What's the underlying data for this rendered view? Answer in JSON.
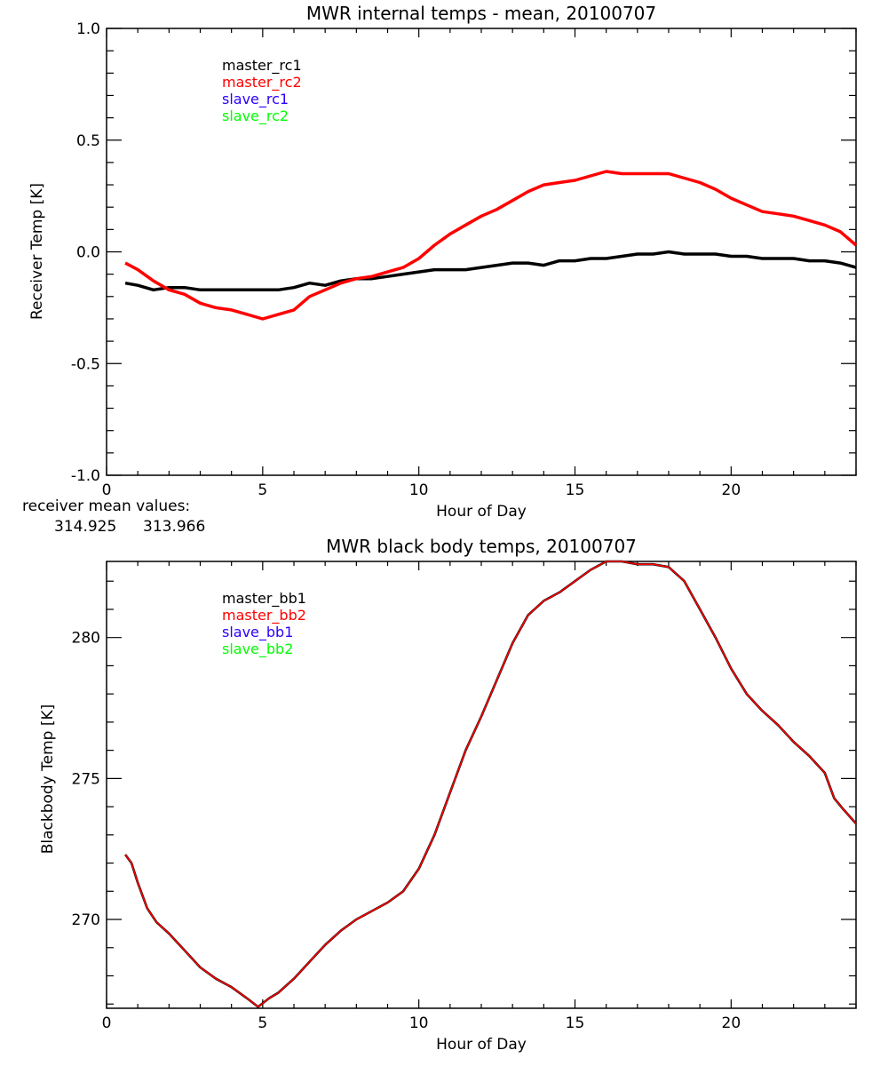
{
  "chart_data": [
    {
      "type": "line",
      "title": "MWR internal temps - mean, 20100707",
      "xlabel": "Hour of Day",
      "ylabel": "Receiver Temp [K]",
      "xlim": [
        0,
        24
      ],
      "ylim": [
        -1.0,
        1.0
      ],
      "xticks": [
        0,
        5,
        10,
        15,
        20
      ],
      "xtick_labels": [
        "0",
        "5",
        "10",
        "15",
        "20"
      ],
      "x_minor_step": 1,
      "yticks": [
        -1.0,
        -0.5,
        0.0,
        0.5,
        1.0
      ],
      "ytick_labels": [
        "-1.0",
        "-0.5",
        "0.0",
        "0.5",
        "1.0"
      ],
      "y_minor_step": 0.1,
      "grid": false,
      "legend": {
        "position": "top-left",
        "entries": [
          {
            "label": "master_rc1",
            "color": "#000000"
          },
          {
            "label": "master_rc2",
            "color": "#ff0000"
          },
          {
            "label": "slave_rc1",
            "color": "#2b00ff"
          },
          {
            "label": "slave_rc2",
            "color": "#00ff00"
          }
        ]
      },
      "series": [
        {
          "name": "master_rc1",
          "color": "#000000",
          "x": [
            0.6,
            1.0,
            1.5,
            2.0,
            2.5,
            3.0,
            3.5,
            4.0,
            4.5,
            5.0,
            5.5,
            6.0,
            6.5,
            7.0,
            7.5,
            8.0,
            8.5,
            9.0,
            9.5,
            10.0,
            10.5,
            11.0,
            11.5,
            12.0,
            12.5,
            13.0,
            13.5,
            14.0,
            14.5,
            15.0,
            15.5,
            16.0,
            16.5,
            17.0,
            17.5,
            18.0,
            18.5,
            19.0,
            19.5,
            20.0,
            20.5,
            21.0,
            21.5,
            22.0,
            22.5,
            23.0,
            23.5,
            24.0
          ],
          "y": [
            -0.14,
            -0.15,
            -0.17,
            -0.16,
            -0.16,
            -0.17,
            -0.17,
            -0.17,
            -0.17,
            -0.17,
            -0.17,
            -0.16,
            -0.14,
            -0.15,
            -0.13,
            -0.12,
            -0.12,
            -0.11,
            -0.1,
            -0.09,
            -0.08,
            -0.08,
            -0.08,
            -0.07,
            -0.06,
            -0.05,
            -0.05,
            -0.06,
            -0.04,
            -0.04,
            -0.03,
            -0.03,
            -0.02,
            -0.01,
            -0.01,
            0.0,
            -0.01,
            -0.01,
            -0.01,
            -0.02,
            -0.02,
            -0.03,
            -0.03,
            -0.03,
            -0.04,
            -0.04,
            -0.05,
            -0.07
          ]
        },
        {
          "name": "master_rc2",
          "color": "#ff0000",
          "x": [
            0.6,
            1.0,
            1.5,
            2.0,
            2.5,
            3.0,
            3.5,
            4.0,
            4.5,
            5.0,
            5.5,
            6.0,
            6.5,
            7.0,
            7.5,
            8.0,
            8.5,
            9.0,
            9.5,
            10.0,
            10.5,
            11.0,
            11.5,
            12.0,
            12.5,
            13.0,
            13.5,
            14.0,
            14.5,
            15.0,
            15.5,
            16.0,
            16.5,
            17.0,
            17.5,
            18.0,
            18.5,
            19.0,
            19.5,
            20.0,
            20.5,
            21.0,
            21.5,
            22.0,
            22.5,
            23.0,
            23.5,
            24.0
          ],
          "y": [
            -0.05,
            -0.08,
            -0.13,
            -0.17,
            -0.19,
            -0.23,
            -0.25,
            -0.26,
            -0.28,
            -0.3,
            -0.28,
            -0.26,
            -0.2,
            -0.17,
            -0.14,
            -0.12,
            -0.11,
            -0.09,
            -0.07,
            -0.03,
            0.03,
            0.08,
            0.12,
            0.16,
            0.19,
            0.23,
            0.27,
            0.3,
            0.31,
            0.32,
            0.34,
            0.36,
            0.35,
            0.35,
            0.35,
            0.35,
            0.33,
            0.31,
            0.28,
            0.24,
            0.21,
            0.18,
            0.17,
            0.16,
            0.14,
            0.12,
            0.09,
            0.03
          ]
        }
      ],
      "annotation": {
        "label": "receiver mean values:",
        "values": [
          {
            "text": "314.925",
            "color": "#000000"
          },
          {
            "text": "313.966",
            "color": "#ff0000"
          }
        ]
      }
    },
    {
      "type": "line",
      "title": "MWR black body temps, 20100707",
      "xlabel": "Hour of Day",
      "ylabel": "Blackbody Temp [K]",
      "xlim": [
        0,
        24
      ],
      "ylim": [
        266.85,
        282.7
      ],
      "xticks": [
        0,
        5,
        10,
        15,
        20
      ],
      "xtick_labels": [
        "0",
        "5",
        "10",
        "15",
        "20"
      ],
      "x_minor_step": 1,
      "yticks": [
        270,
        275,
        280
      ],
      "ytick_labels": [
        "270",
        "275",
        "280"
      ],
      "y_minor_step": 1,
      "grid": false,
      "legend": {
        "position": "top-left",
        "entries": [
          {
            "label": "master_bb1",
            "color": "#000000"
          },
          {
            "label": "master_bb2",
            "color": "#ff0000"
          },
          {
            "label": "slave_bb1",
            "color": "#2b00ff"
          },
          {
            "label": "slave_bb2",
            "color": "#00ff00"
          }
        ]
      },
      "series": [
        {
          "name": "master_bb1",
          "color": "#000000",
          "x": [
            0.6,
            0.8,
            1.0,
            1.3,
            1.6,
            2.0,
            2.5,
            3.0,
            3.5,
            4.0,
            4.5,
            4.85,
            5.2,
            5.5,
            6.0,
            6.5,
            7.0,
            7.5,
            8.0,
            8.5,
            9.0,
            9.5,
            10.0,
            10.5,
            11.0,
            11.5,
            12.0,
            12.5,
            13.0,
            13.5,
            14.0,
            14.5,
            15.0,
            15.5,
            16.0,
            16.5,
            17.0,
            17.5,
            18.0,
            18.5,
            19.0,
            19.5,
            20.0,
            20.5,
            21.0,
            21.5,
            22.0,
            22.5,
            23.0,
            23.3,
            23.6,
            24.0
          ],
          "y": [
            272.3,
            272.0,
            271.3,
            270.4,
            269.9,
            269.5,
            268.9,
            268.3,
            267.9,
            267.6,
            267.2,
            266.9,
            267.2,
            267.4,
            267.9,
            268.5,
            269.1,
            269.6,
            270.0,
            270.3,
            270.6,
            271.0,
            271.8,
            273.0,
            274.5,
            276.0,
            277.2,
            278.5,
            279.8,
            280.8,
            281.3,
            281.6,
            282.0,
            282.4,
            282.7,
            282.7,
            282.6,
            282.6,
            282.5,
            282.0,
            281.0,
            280.0,
            278.9,
            278.0,
            277.4,
            276.9,
            276.3,
            275.8,
            275.2,
            274.3,
            273.9,
            273.4
          ]
        },
        {
          "name": "master_bb2",
          "color": "#ff0000",
          "x": [
            0.6,
            0.8,
            1.0,
            1.3,
            1.6,
            2.0,
            2.5,
            3.0,
            3.5,
            4.0,
            4.5,
            4.85,
            5.2,
            5.5,
            6.0,
            6.5,
            7.0,
            7.5,
            8.0,
            8.5,
            9.0,
            9.5,
            10.0,
            10.5,
            11.0,
            11.5,
            12.0,
            12.5,
            13.0,
            13.5,
            14.0,
            14.5,
            15.0,
            15.5,
            16.0,
            16.5,
            17.0,
            17.5,
            18.0,
            18.5,
            19.0,
            19.5,
            20.0,
            20.5,
            21.0,
            21.5,
            22.0,
            22.5,
            23.0,
            23.3,
            23.6,
            24.0
          ],
          "y": [
            272.3,
            272.0,
            271.3,
            270.4,
            269.9,
            269.5,
            268.9,
            268.3,
            267.9,
            267.6,
            267.2,
            266.9,
            267.2,
            267.4,
            267.9,
            268.5,
            269.1,
            269.6,
            270.0,
            270.3,
            270.6,
            271.0,
            271.8,
            273.0,
            274.5,
            276.0,
            277.2,
            278.5,
            279.8,
            280.8,
            281.3,
            281.6,
            282.0,
            282.4,
            282.7,
            282.7,
            282.6,
            282.6,
            282.5,
            282.0,
            281.0,
            280.0,
            278.9,
            278.0,
            277.4,
            276.9,
            276.3,
            275.8,
            275.2,
            274.3,
            273.9,
            273.4
          ]
        }
      ]
    }
  ]
}
